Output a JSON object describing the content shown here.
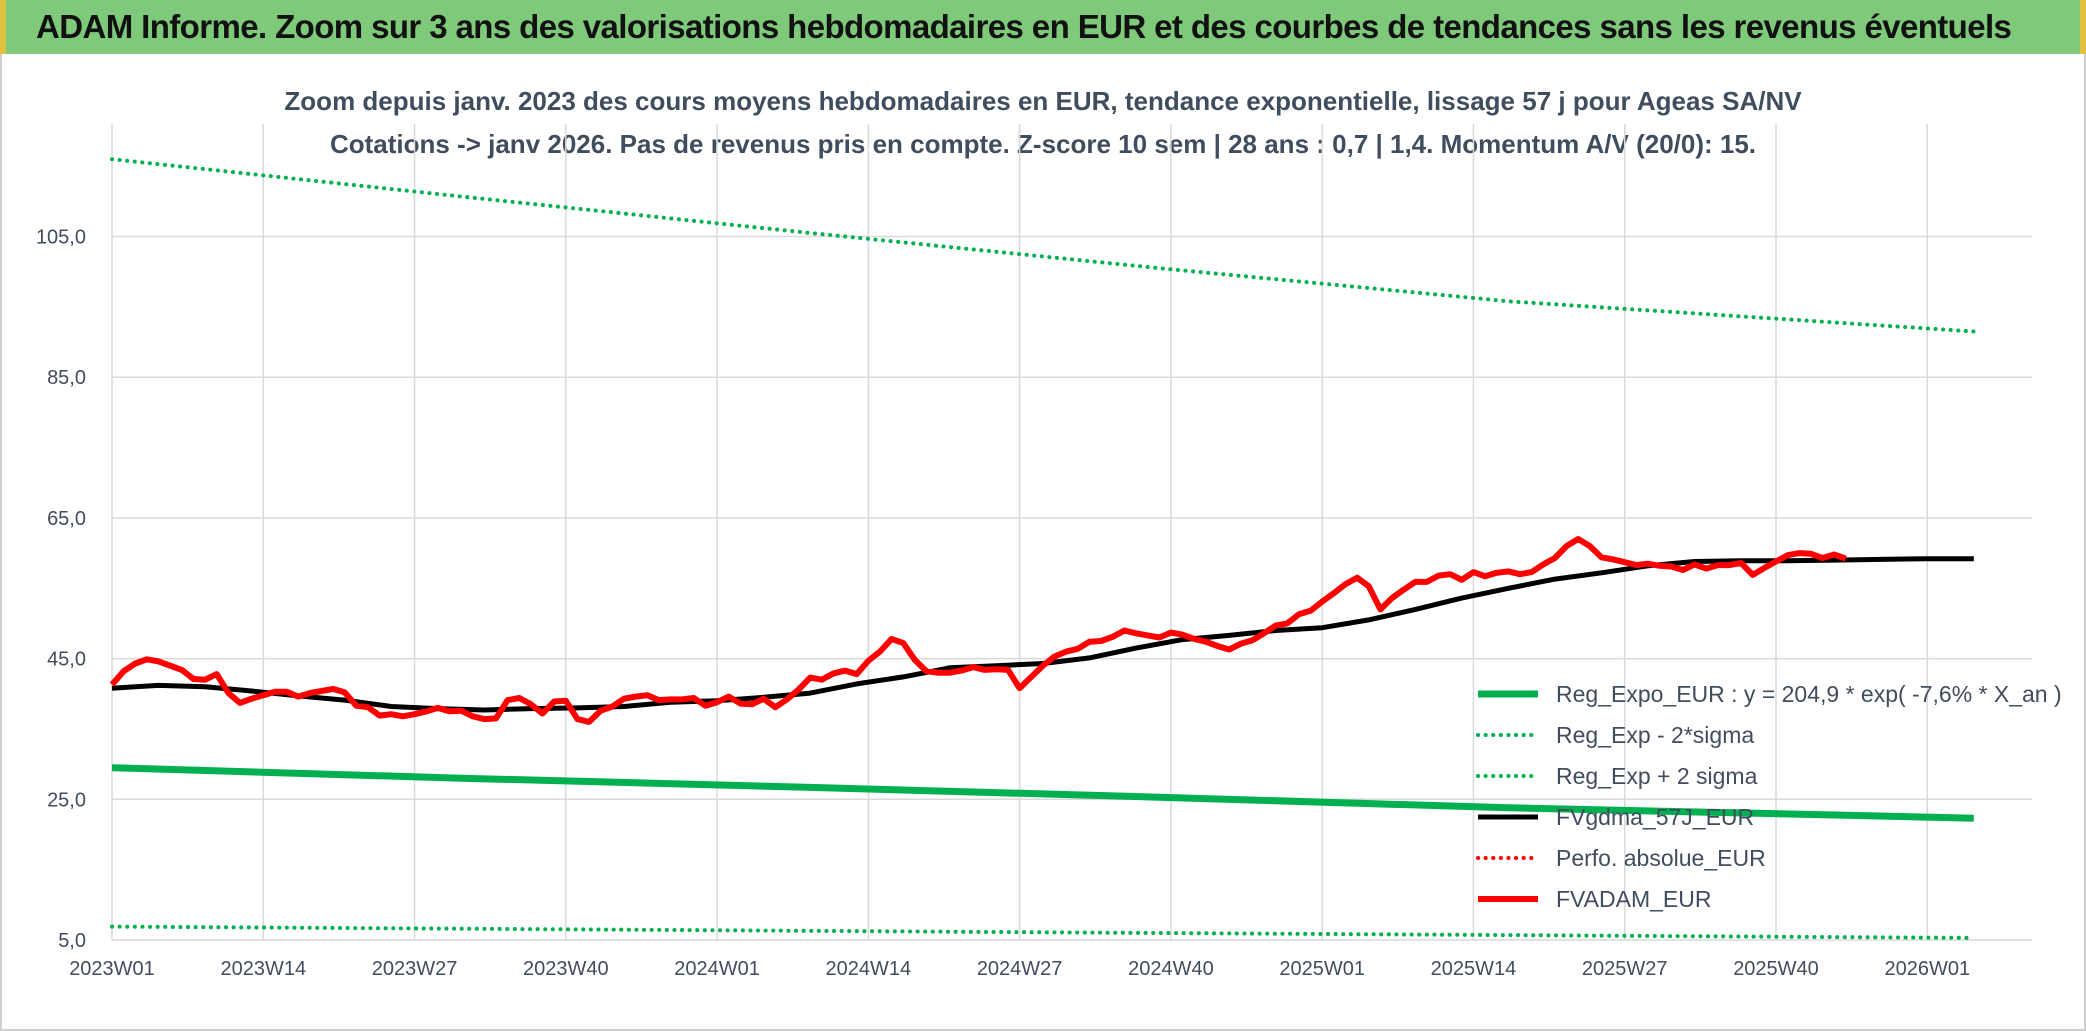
{
  "header": {
    "title": "ADAM Informe. Zoom sur 3 ans des valorisations hebdomadaires en EUR et des courbes de tendances sans les revenus éventuels"
  },
  "chart_data": {
    "type": "line",
    "title": "Zoom depuis janv. 2023 des cours moyens hebdomadaires en EUR, tendance exponentielle, lissage 57 j pour Ageas SA/NV",
    "subtitle": "Cotations -> janv 2026. Pas de revenus pris en compte. Z-score 10 sem | 28 ans : 0,7 | 1,4. Momentum A/V (20/0): 15.",
    "xlabel": "",
    "ylabel": "",
    "ylim": [
      5,
      121
    ],
    "x_range": [
      0,
      165
    ],
    "y_ticks": [
      5,
      25,
      45,
      65,
      85,
      105
    ],
    "y_tick_labels": [
      "5,0",
      "25,0",
      "45,0",
      "65,0",
      "85,0",
      "105,0"
    ],
    "x_ticks": [
      {
        "x": 0,
        "label": "2023W01"
      },
      {
        "x": 13,
        "label": "2023W14"
      },
      {
        "x": 26,
        "label": "2023W27"
      },
      {
        "x": 39,
        "label": "2023W40"
      },
      {
        "x": 52,
        "label": "2024W01"
      },
      {
        "x": 65,
        "label": "2024W14"
      },
      {
        "x": 78,
        "label": "2024W27"
      },
      {
        "x": 91,
        "label": "2024W40"
      },
      {
        "x": 104,
        "label": "2025W01"
      },
      {
        "x": 117,
        "label": "2025W14"
      },
      {
        "x": 130,
        "label": "2025W27"
      },
      {
        "x": 143,
        "label": "2025W40"
      },
      {
        "x": 156,
        "label": "2026W01"
      }
    ],
    "grid": true,
    "legend_position": "right-bottom",
    "series": [
      {
        "name": "Reg_Expo_EUR : y = 204,9 * exp( -7,6% *  X_an )",
        "color": "#00b050",
        "style": "solid",
        "width": 7,
        "points": [
          [
            0,
            29.5
          ],
          [
            30,
            28.0
          ],
          [
            60,
            26.7
          ],
          [
            90,
            25.3
          ],
          [
            120,
            23.8
          ],
          [
            150,
            22.7
          ],
          [
            160,
            22.3
          ]
        ]
      },
      {
        "name": "Reg_Exp - 2*sigma",
        "color": "#00b050",
        "style": "dotted",
        "width": 4,
        "points": [
          [
            0,
            6.9
          ],
          [
            40,
            6.5
          ],
          [
            80,
            6.1
          ],
          [
            120,
            5.7
          ],
          [
            160,
            5.3
          ]
        ]
      },
      {
        "name": "Reg_Exp + 2 sigma",
        "color": "#00b050",
        "style": "dotted",
        "width": 4,
        "points": [
          [
            0,
            116.0
          ],
          [
            30,
            110.7
          ],
          [
            60,
            105.5
          ],
          [
            90,
            100.5
          ],
          [
            120,
            95.8
          ],
          [
            160,
            91.5
          ]
        ]
      },
      {
        "name": "FVgdma_57J_EUR",
        "color": "#000000",
        "style": "solid",
        "width": 5,
        "points": [
          [
            0,
            40.8
          ],
          [
            4,
            41.2
          ],
          [
            8,
            41.0
          ],
          [
            12,
            40.4
          ],
          [
            16,
            39.7
          ],
          [
            20,
            39.1
          ],
          [
            24,
            38.2
          ],
          [
            28,
            37.9
          ],
          [
            32,
            37.7
          ],
          [
            36,
            37.9
          ],
          [
            40,
            38.0
          ],
          [
            44,
            38.2
          ],
          [
            48,
            38.8
          ],
          [
            52,
            39.0
          ],
          [
            56,
            39.5
          ],
          [
            60,
            40.1
          ],
          [
            64,
            41.4
          ],
          [
            68,
            42.4
          ],
          [
            72,
            43.7
          ],
          [
            76,
            44.0
          ],
          [
            80,
            44.3
          ],
          [
            84,
            45.1
          ],
          [
            88,
            46.5
          ],
          [
            92,
            47.7
          ],
          [
            96,
            48.3
          ],
          [
            100,
            49.0
          ],
          [
            104,
            49.4
          ],
          [
            108,
            50.5
          ],
          [
            112,
            52.0
          ],
          [
            116,
            53.6
          ],
          [
            120,
            55.0
          ],
          [
            124,
            56.3
          ],
          [
            128,
            57.2
          ],
          [
            132,
            58.2
          ],
          [
            136,
            58.8
          ],
          [
            140,
            58.9
          ],
          [
            144,
            58.9
          ],
          [
            148,
            59.0
          ],
          [
            152,
            59.1
          ],
          [
            156,
            59.2
          ],
          [
            160,
            59.2
          ]
        ]
      },
      {
        "name": "Perfo. absolue_EUR",
        "color": "#ff0000",
        "style": "dotted",
        "width": 4,
        "points": []
      },
      {
        "name": "FVADAM_EUR",
        "color": "#ff0000",
        "style": "solid",
        "width": 6,
        "points": [
          [
            0,
            41.3
          ],
          [
            1,
            43.2
          ],
          [
            2,
            44.3
          ],
          [
            3,
            44.9
          ],
          [
            4,
            44.6
          ],
          [
            5,
            44.0
          ],
          [
            6,
            43.4
          ],
          [
            7,
            42.1
          ],
          [
            8,
            42.0
          ],
          [
            9,
            42.8
          ],
          [
            10,
            40.1
          ],
          [
            11,
            38.7
          ],
          [
            12,
            39.3
          ],
          [
            13,
            39.8
          ],
          [
            14,
            40.3
          ],
          [
            15,
            40.3
          ],
          [
            16,
            39.6
          ],
          [
            17,
            40.1
          ],
          [
            18,
            40.4
          ],
          [
            19,
            40.7
          ],
          [
            20,
            40.2
          ],
          [
            21,
            38.3
          ],
          [
            22,
            38.1
          ],
          [
            23,
            36.9
          ],
          [
            24,
            37.1
          ],
          [
            25,
            36.8
          ],
          [
            26,
            37.1
          ],
          [
            27,
            37.5
          ],
          [
            28,
            38.0
          ],
          [
            29,
            37.5
          ],
          [
            30,
            37.6
          ],
          [
            31,
            36.8
          ],
          [
            32,
            36.4
          ],
          [
            33,
            36.5
          ],
          [
            34,
            39.1
          ],
          [
            35,
            39.4
          ],
          [
            36,
            38.5
          ],
          [
            37,
            37.2
          ],
          [
            38,
            38.9
          ],
          [
            39,
            39.0
          ],
          [
            40,
            36.4
          ],
          [
            41,
            36.0
          ],
          [
            42,
            37.6
          ],
          [
            43,
            38.2
          ],
          [
            44,
            39.3
          ],
          [
            45,
            39.6
          ],
          [
            46,
            39.8
          ],
          [
            47,
            39.1
          ],
          [
            48,
            39.2
          ],
          [
            49,
            39.2
          ],
          [
            50,
            39.4
          ],
          [
            51,
            38.3
          ],
          [
            52,
            38.8
          ],
          [
            53,
            39.6
          ],
          [
            54,
            38.6
          ],
          [
            55,
            38.5
          ],
          [
            56,
            39.3
          ],
          [
            57,
            38.1
          ],
          [
            58,
            39.2
          ],
          [
            59,
            40.6
          ],
          [
            60,
            42.3
          ],
          [
            61,
            42.0
          ],
          [
            62,
            42.9
          ],
          [
            63,
            43.3
          ],
          [
            64,
            42.8
          ],
          [
            65,
            44.7
          ],
          [
            66,
            46.0
          ],
          [
            67,
            47.8
          ],
          [
            68,
            47.2
          ],
          [
            69,
            44.8
          ],
          [
            70,
            43.2
          ],
          [
            71,
            43.0
          ],
          [
            72,
            43.0
          ],
          [
            73,
            43.3
          ],
          [
            74,
            43.8
          ],
          [
            75,
            43.4
          ],
          [
            76,
            43.5
          ],
          [
            77,
            43.4
          ],
          [
            78,
            40.8
          ],
          [
            79,
            42.4
          ],
          [
            80,
            44.0
          ],
          [
            81,
            45.3
          ],
          [
            82,
            46.0
          ],
          [
            83,
            46.4
          ],
          [
            84,
            47.4
          ],
          [
            85,
            47.5
          ],
          [
            86,
            48.1
          ],
          [
            87,
            49.0
          ],
          [
            88,
            48.6
          ],
          [
            89,
            48.3
          ],
          [
            90,
            48.0
          ],
          [
            91,
            48.7
          ],
          [
            92,
            48.4
          ],
          [
            93,
            47.8
          ],
          [
            94,
            47.4
          ],
          [
            95,
            46.8
          ],
          [
            96,
            46.3
          ],
          [
            97,
            47.1
          ],
          [
            98,
            47.6
          ],
          [
            99,
            48.6
          ],
          [
            100,
            49.7
          ],
          [
            101,
            50.0
          ],
          [
            102,
            51.3
          ],
          [
            103,
            51.8
          ],
          [
            104,
            53.1
          ],
          [
            105,
            54.3
          ],
          [
            106,
            55.6
          ],
          [
            107,
            56.5
          ],
          [
            108,
            55.3
          ],
          [
            109,
            52.0
          ],
          [
            110,
            53.6
          ],
          [
            111,
            54.8
          ],
          [
            112,
            55.9
          ],
          [
            113,
            55.9
          ],
          [
            114,
            56.8
          ],
          [
            115,
            57.0
          ],
          [
            116,
            56.2
          ],
          [
            117,
            57.3
          ],
          [
            118,
            56.7
          ],
          [
            119,
            57.2
          ],
          [
            120,
            57.4
          ],
          [
            121,
            57.0
          ],
          [
            122,
            57.3
          ],
          [
            123,
            58.4
          ],
          [
            124,
            59.3
          ],
          [
            125,
            61.0
          ],
          [
            126,
            62.0
          ],
          [
            127,
            61.0
          ],
          [
            128,
            59.4
          ],
          [
            129,
            59.1
          ],
          [
            130,
            58.7
          ],
          [
            131,
            58.3
          ],
          [
            132,
            58.5
          ],
          [
            133,
            58.2
          ],
          [
            134,
            58.1
          ],
          [
            135,
            57.6
          ],
          [
            136,
            58.4
          ],
          [
            137,
            57.8
          ],
          [
            138,
            58.3
          ],
          [
            139,
            58.3
          ],
          [
            140,
            58.6
          ],
          [
            141,
            56.9
          ],
          [
            142,
            57.9
          ],
          [
            143,
            58.8
          ],
          [
            144,
            59.7
          ],
          [
            145,
            60.0
          ],
          [
            146,
            59.9
          ],
          [
            147,
            59.3
          ],
          [
            148,
            59.8
          ],
          [
            149,
            59.2
          ]
        ]
      }
    ]
  }
}
